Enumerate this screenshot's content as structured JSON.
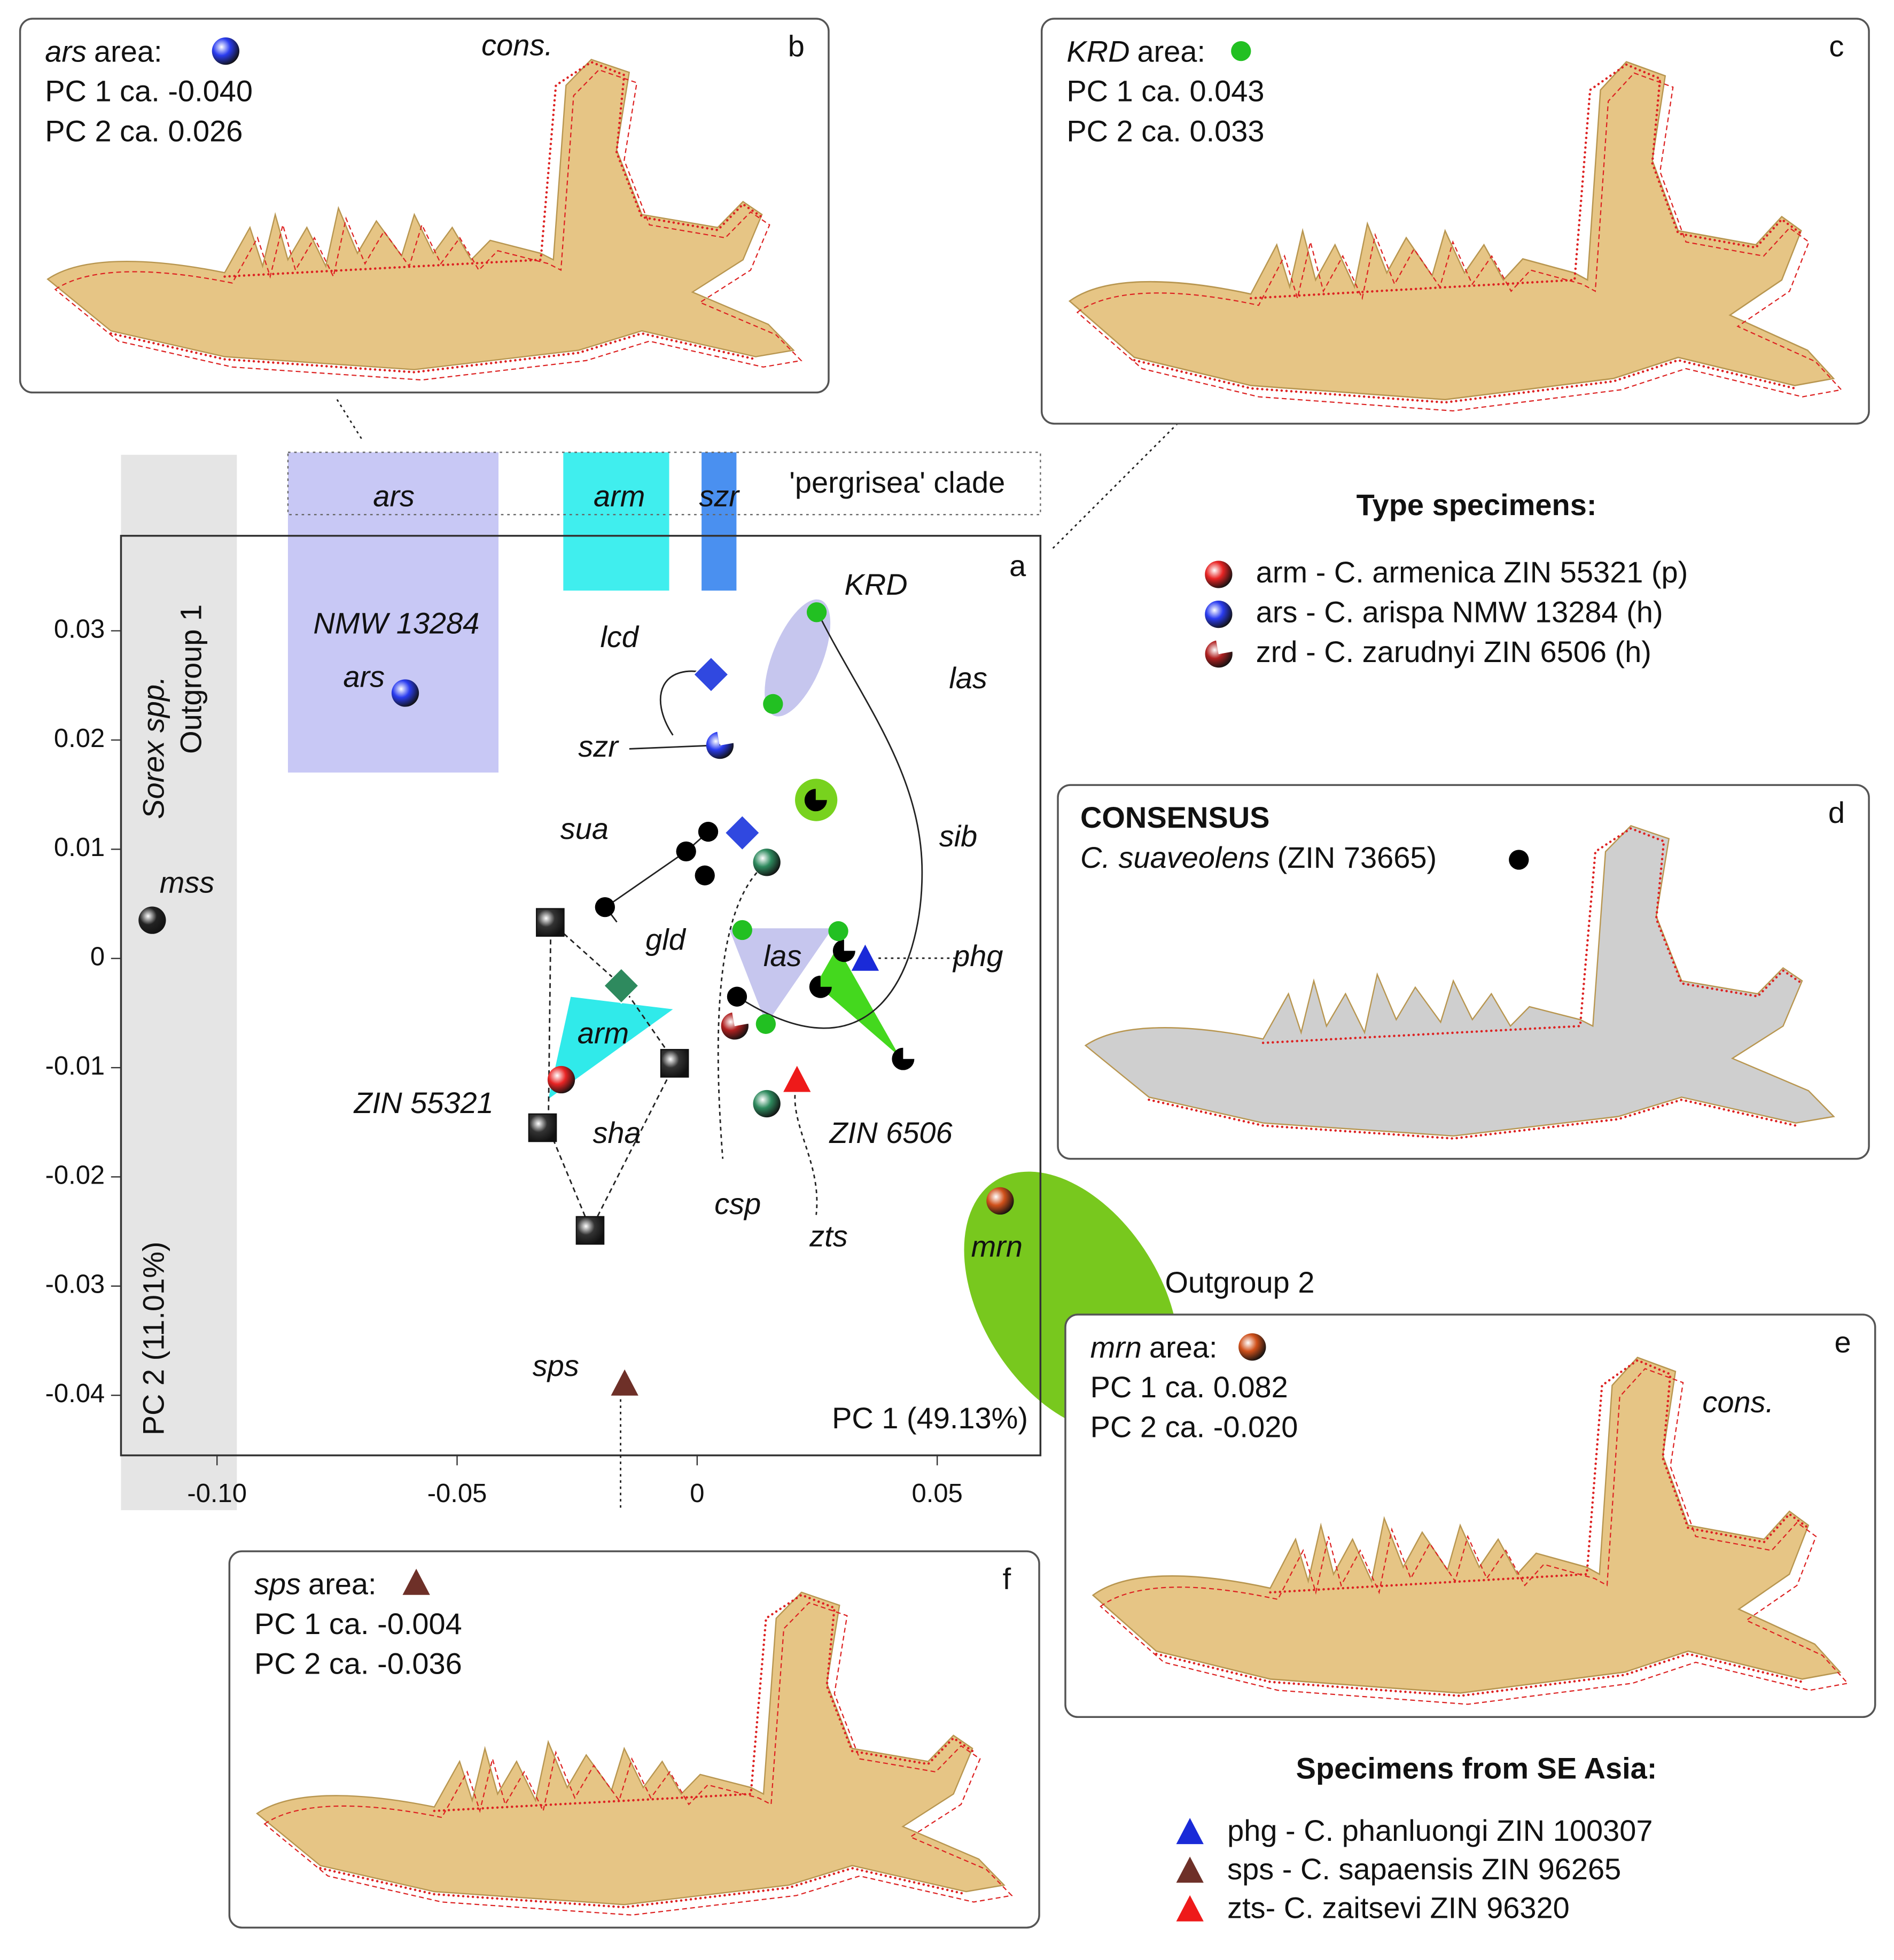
{
  "chart_data": {
    "type": "scatter",
    "panel_label": "a",
    "xlabel": "PC 1 (49.13%)",
    "ylabel": "PC 2 (11.01%)",
    "xlim": [
      -0.12,
      0.0715
    ],
    "ylim": [
      -0.0455,
      0.0387
    ],
    "xticks": [
      {
        "value": -0.1,
        "label": "-0.10"
      },
      -0.05,
      0,
      0.05
    ],
    "yticks": [
      0.03,
      0.02,
      0.01,
      0,
      -0.01,
      -0.02,
      -0.03,
      -0.04
    ],
    "type_legend_title": "Type specimens:",
    "asia_legend_title": "Specimens from SE Asia:",
    "series": [
      {
        "name": "arm - C. armenica ZIN 55321 (p)",
        "marker": "sphere",
        "color": "#e82424",
        "x": [
          -0.0283
        ],
        "values": [
          -0.0111
        ]
      },
      {
        "name": "ars - C. arispa NMW 13284 (h)",
        "marker": "sphere",
        "color": "#2a3cf0",
        "x": [
          -0.0608
        ],
        "values": [
          0.0243
        ]
      },
      {
        "name": "zrd - C. zarudnyi ZIN 6506 (h)",
        "marker": "half",
        "color": "#b02020",
        "x": [
          0.0078
        ],
        "values": [
          -0.0062
        ]
      },
      {
        "name": "phg - C. phanluongi ZIN 100307",
        "marker": "triangle",
        "color": "#1a2ad8",
        "x": [
          0.035
        ],
        "values": [
          -0.0001
        ]
      },
      {
        "name": "sps - C. sapaensis ZIN 96265",
        "marker": "triangle",
        "color": "#6e3028",
        "x": [
          -0.0151
        ],
        "values": [
          -0.039
        ]
      },
      {
        "name": "zts- C. zaitsevi ZIN 96320",
        "marker": "triangle",
        "color": "#ee1a1a",
        "x": [
          0.0208
        ],
        "values": [
          -0.0112
        ]
      },
      {
        "marker": "half",
        "color": "#2a3cf0",
        "x": [
          0.0047
        ],
        "values": [
          0.0195
        ]
      },
      {
        "marker": "sphere",
        "color": "#222222",
        "x": [
          -0.1135
        ],
        "values": [
          0.0035
        ]
      },
      {
        "marker": "sphere",
        "color": "#d0501a",
        "x": [
          0.0631
        ],
        "values": [
          -0.0222
        ]
      },
      {
        "marker": "pie",
        "color": "#000000",
        "x": [
          0.0247,
          0.0306,
          0.0257,
          0.0429
        ],
        "values": [
          0.0145,
          0.0007,
          -0.0026,
          -0.0092
        ]
      },
      {
        "marker": "dot",
        "color": "#000000",
        "x": [
          -0.0192,
          -0.0023,
          0.0023,
          0.0016,
          0.0083
        ],
        "values": [
          0.0047,
          0.0098,
          0.0116,
          0.0076,
          -0.0035
        ]
      },
      {
        "marker": "diamond",
        "color": "#3048e0",
        "x": [
          0.0029,
          0.0094
        ],
        "values": [
          0.026,
          0.0115
        ]
      },
      {
        "marker": "diamond",
        "color": "#2e8a5e",
        "x": [
          -0.0158
        ],
        "values": [
          -0.0025
        ]
      },
      {
        "marker": "sphere",
        "color": "#2e8a5e",
        "x": [
          0.0145,
          0.0145
        ],
        "values": [
          0.0088,
          -0.0133
        ]
      },
      {
        "marker": "dot",
        "color": "#22c022",
        "x": [
          0.0249,
          0.0158,
          0.0094,
          0.0294,
          0.0143
        ],
        "values": [
          0.0317,
          0.0233,
          0.0026,
          0.0025,
          -0.006
        ]
      },
      {
        "marker": "square",
        "color": "#333333",
        "x": [
          -0.0306,
          -0.0047,
          -0.0322,
          -0.0223
        ],
        "values": [
          0.0033,
          -0.0096,
          -0.0155,
          -0.0249
        ]
      }
    ],
    "annotations": [
      "NMW 13284",
      "ars",
      "mss",
      "KRD",
      "lcd",
      "las",
      "szr",
      "sua",
      "sib",
      "gld",
      "las",
      "phg",
      "arm",
      "ZIN 55321",
      "sha",
      "ZIN 6506",
      "csp",
      "zts",
      "mrn",
      "sps",
      "ars",
      "arm",
      "szr",
      "'pergrisea' clade",
      "Sorex spp.",
      "Outgroup 1",
      "Outgroup 2"
    ]
  },
  "panels": {
    "b": {
      "label": "b",
      "area_code": "ars",
      "area_word": "area:",
      "pc1": "PC 1 ca. -0.040",
      "pc2": "PC 2 ca. 0.026",
      "cons": "cons."
    },
    "c": {
      "label": "c",
      "area_code": "KRD",
      "area_word": "area:",
      "pc1": "PC 1 ca. 0.043",
      "pc2": "PC 2 ca. 0.033"
    },
    "d": {
      "label": "d",
      "title": "CONSENSUS",
      "species": "C. suaveolens",
      "specimen": "(ZIN 73665)"
    },
    "e": {
      "label": "e",
      "area_code": "mrn",
      "area_word": "area:",
      "pc1": "PC 1 ca. 0.082",
      "pc2": "PC 2 ca. -0.020",
      "cons": "cons."
    },
    "f": {
      "label": "f",
      "area_code": "sps",
      "area_word": "area:",
      "pc1": "PC 1 ca. -0.004",
      "pc2": "PC 2 ca. -0.036"
    }
  }
}
